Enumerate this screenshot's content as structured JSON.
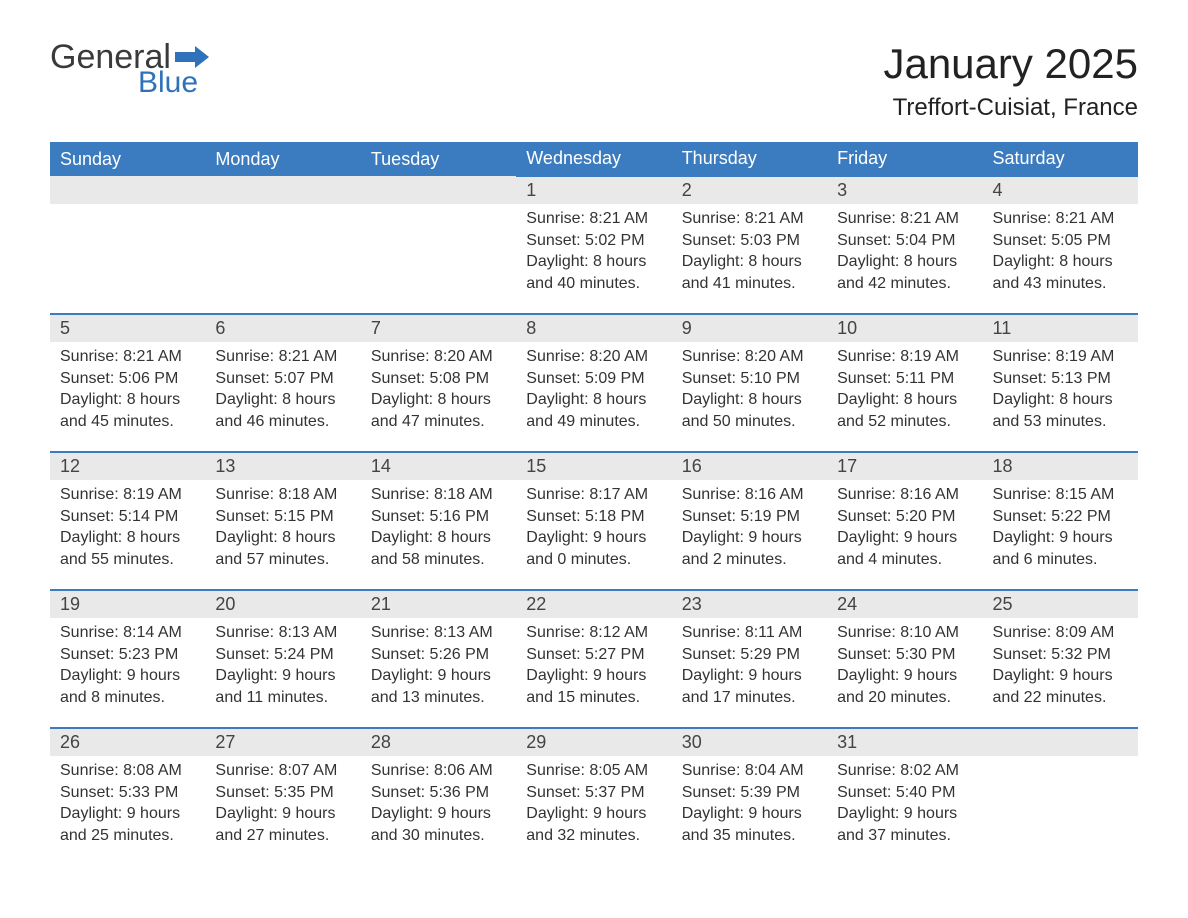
{
  "brand": {
    "word1": "General",
    "word2": "Blue"
  },
  "title": "January 2025",
  "location": "Treffort-Cuisiat, France",
  "colors": {
    "header_bg": "#3b7bbf",
    "header_text": "#ffffff",
    "daynum_bg": "#e9e9e9",
    "border": "#3b7bbf",
    "body_text": "#333333",
    "logo_gray": "#3a3a3a",
    "logo_blue": "#2f72b9",
    "page_bg": "#ffffff"
  },
  "fonts": {
    "title_size_pt": 32,
    "location_size_pt": 18,
    "header_size_pt": 14,
    "daynum_size_pt": 14,
    "body_size_pt": 12
  },
  "layout": {
    "columns": 7,
    "rows": 5,
    "start_weekday": "Sunday"
  },
  "weekdays": [
    "Sunday",
    "Monday",
    "Tuesday",
    "Wednesday",
    "Thursday",
    "Friday",
    "Saturday"
  ],
  "weeks": [
    [
      null,
      null,
      null,
      {
        "day": "1",
        "sunrise": "Sunrise: 8:21 AM",
        "sunset": "Sunset: 5:02 PM",
        "daylight1": "Daylight: 8 hours",
        "daylight2": "and 40 minutes."
      },
      {
        "day": "2",
        "sunrise": "Sunrise: 8:21 AM",
        "sunset": "Sunset: 5:03 PM",
        "daylight1": "Daylight: 8 hours",
        "daylight2": "and 41 minutes."
      },
      {
        "day": "3",
        "sunrise": "Sunrise: 8:21 AM",
        "sunset": "Sunset: 5:04 PM",
        "daylight1": "Daylight: 8 hours",
        "daylight2": "and 42 minutes."
      },
      {
        "day": "4",
        "sunrise": "Sunrise: 8:21 AM",
        "sunset": "Sunset: 5:05 PM",
        "daylight1": "Daylight: 8 hours",
        "daylight2": "and 43 minutes."
      }
    ],
    [
      {
        "day": "5",
        "sunrise": "Sunrise: 8:21 AM",
        "sunset": "Sunset: 5:06 PM",
        "daylight1": "Daylight: 8 hours",
        "daylight2": "and 45 minutes."
      },
      {
        "day": "6",
        "sunrise": "Sunrise: 8:21 AM",
        "sunset": "Sunset: 5:07 PM",
        "daylight1": "Daylight: 8 hours",
        "daylight2": "and 46 minutes."
      },
      {
        "day": "7",
        "sunrise": "Sunrise: 8:20 AM",
        "sunset": "Sunset: 5:08 PM",
        "daylight1": "Daylight: 8 hours",
        "daylight2": "and 47 minutes."
      },
      {
        "day": "8",
        "sunrise": "Sunrise: 8:20 AM",
        "sunset": "Sunset: 5:09 PM",
        "daylight1": "Daylight: 8 hours",
        "daylight2": "and 49 minutes."
      },
      {
        "day": "9",
        "sunrise": "Sunrise: 8:20 AM",
        "sunset": "Sunset: 5:10 PM",
        "daylight1": "Daylight: 8 hours",
        "daylight2": "and 50 minutes."
      },
      {
        "day": "10",
        "sunrise": "Sunrise: 8:19 AM",
        "sunset": "Sunset: 5:11 PM",
        "daylight1": "Daylight: 8 hours",
        "daylight2": "and 52 minutes."
      },
      {
        "day": "11",
        "sunrise": "Sunrise: 8:19 AM",
        "sunset": "Sunset: 5:13 PM",
        "daylight1": "Daylight: 8 hours",
        "daylight2": "and 53 minutes."
      }
    ],
    [
      {
        "day": "12",
        "sunrise": "Sunrise: 8:19 AM",
        "sunset": "Sunset: 5:14 PM",
        "daylight1": "Daylight: 8 hours",
        "daylight2": "and 55 minutes."
      },
      {
        "day": "13",
        "sunrise": "Sunrise: 8:18 AM",
        "sunset": "Sunset: 5:15 PM",
        "daylight1": "Daylight: 8 hours",
        "daylight2": "and 57 minutes."
      },
      {
        "day": "14",
        "sunrise": "Sunrise: 8:18 AM",
        "sunset": "Sunset: 5:16 PM",
        "daylight1": "Daylight: 8 hours",
        "daylight2": "and 58 minutes."
      },
      {
        "day": "15",
        "sunrise": "Sunrise: 8:17 AM",
        "sunset": "Sunset: 5:18 PM",
        "daylight1": "Daylight: 9 hours",
        "daylight2": "and 0 minutes."
      },
      {
        "day": "16",
        "sunrise": "Sunrise: 8:16 AM",
        "sunset": "Sunset: 5:19 PM",
        "daylight1": "Daylight: 9 hours",
        "daylight2": "and 2 minutes."
      },
      {
        "day": "17",
        "sunrise": "Sunrise: 8:16 AM",
        "sunset": "Sunset: 5:20 PM",
        "daylight1": "Daylight: 9 hours",
        "daylight2": "and 4 minutes."
      },
      {
        "day": "18",
        "sunrise": "Sunrise: 8:15 AM",
        "sunset": "Sunset: 5:22 PM",
        "daylight1": "Daylight: 9 hours",
        "daylight2": "and 6 minutes."
      }
    ],
    [
      {
        "day": "19",
        "sunrise": "Sunrise: 8:14 AM",
        "sunset": "Sunset: 5:23 PM",
        "daylight1": "Daylight: 9 hours",
        "daylight2": "and 8 minutes."
      },
      {
        "day": "20",
        "sunrise": "Sunrise: 8:13 AM",
        "sunset": "Sunset: 5:24 PM",
        "daylight1": "Daylight: 9 hours",
        "daylight2": "and 11 minutes."
      },
      {
        "day": "21",
        "sunrise": "Sunrise: 8:13 AM",
        "sunset": "Sunset: 5:26 PM",
        "daylight1": "Daylight: 9 hours",
        "daylight2": "and 13 minutes."
      },
      {
        "day": "22",
        "sunrise": "Sunrise: 8:12 AM",
        "sunset": "Sunset: 5:27 PM",
        "daylight1": "Daylight: 9 hours",
        "daylight2": "and 15 minutes."
      },
      {
        "day": "23",
        "sunrise": "Sunrise: 8:11 AM",
        "sunset": "Sunset: 5:29 PM",
        "daylight1": "Daylight: 9 hours",
        "daylight2": "and 17 minutes."
      },
      {
        "day": "24",
        "sunrise": "Sunrise: 8:10 AM",
        "sunset": "Sunset: 5:30 PM",
        "daylight1": "Daylight: 9 hours",
        "daylight2": "and 20 minutes."
      },
      {
        "day": "25",
        "sunrise": "Sunrise: 8:09 AM",
        "sunset": "Sunset: 5:32 PM",
        "daylight1": "Daylight: 9 hours",
        "daylight2": "and 22 minutes."
      }
    ],
    [
      {
        "day": "26",
        "sunrise": "Sunrise: 8:08 AM",
        "sunset": "Sunset: 5:33 PM",
        "daylight1": "Daylight: 9 hours",
        "daylight2": "and 25 minutes."
      },
      {
        "day": "27",
        "sunrise": "Sunrise: 8:07 AM",
        "sunset": "Sunset: 5:35 PM",
        "daylight1": "Daylight: 9 hours",
        "daylight2": "and 27 minutes."
      },
      {
        "day": "28",
        "sunrise": "Sunrise: 8:06 AM",
        "sunset": "Sunset: 5:36 PM",
        "daylight1": "Daylight: 9 hours",
        "daylight2": "and 30 minutes."
      },
      {
        "day": "29",
        "sunrise": "Sunrise: 8:05 AM",
        "sunset": "Sunset: 5:37 PM",
        "daylight1": "Daylight: 9 hours",
        "daylight2": "and 32 minutes."
      },
      {
        "day": "30",
        "sunrise": "Sunrise: 8:04 AM",
        "sunset": "Sunset: 5:39 PM",
        "daylight1": "Daylight: 9 hours",
        "daylight2": "and 35 minutes."
      },
      {
        "day": "31",
        "sunrise": "Sunrise: 8:02 AM",
        "sunset": "Sunset: 5:40 PM",
        "daylight1": "Daylight: 9 hours",
        "daylight2": "and 37 minutes."
      },
      null
    ]
  ]
}
